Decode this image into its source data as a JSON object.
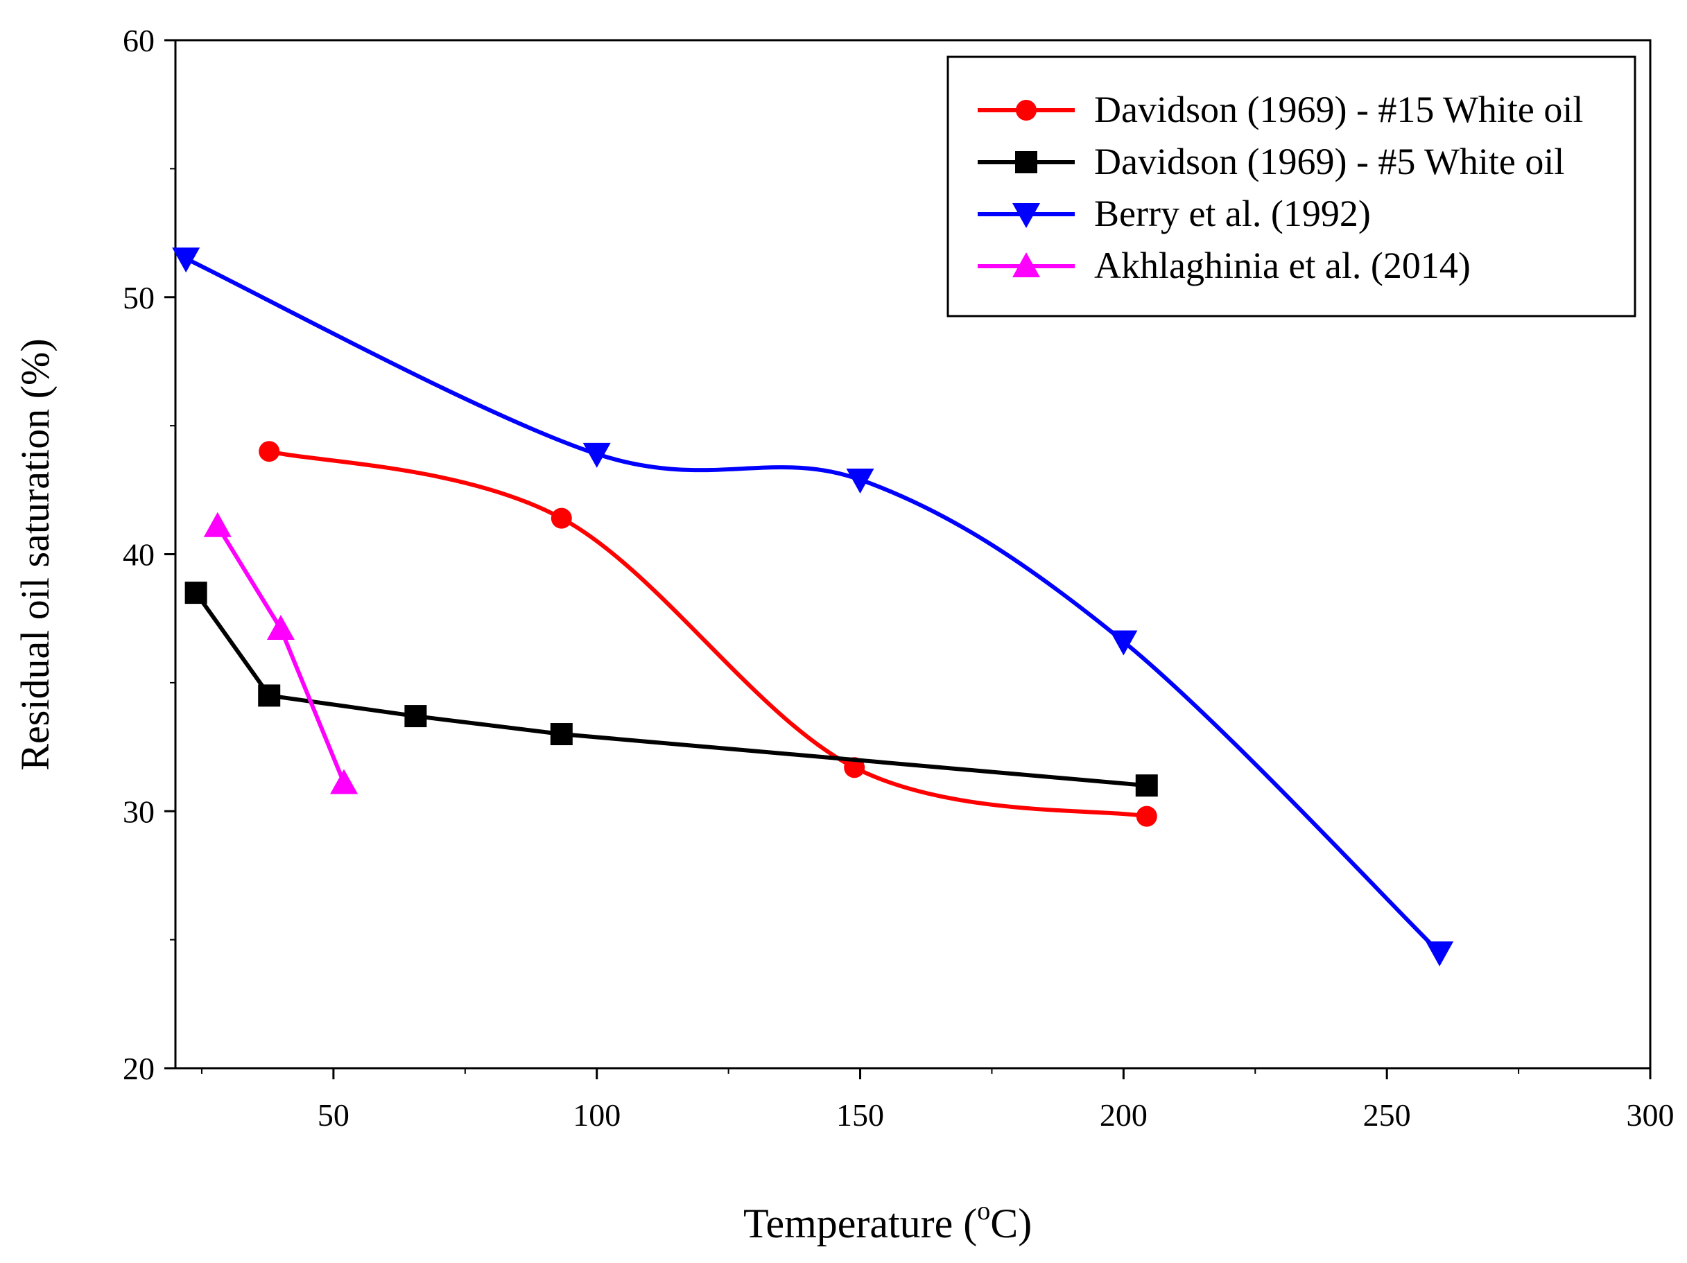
{
  "chart_data": {
    "type": "line",
    "title": "",
    "xlabel": "Temperature (",
    "xlabel_sup": "o",
    "xlabel_tail": "C)",
    "ylabel": "Residual oil saturation (%)",
    "xlim": [
      20,
      300
    ],
    "ylim": [
      20,
      60
    ],
    "xticks": [
      50,
      100,
      150,
      200,
      250,
      300
    ],
    "yticks": [
      20,
      30,
      40,
      50,
      60
    ],
    "grid": false,
    "legend_position": "top-right",
    "series": [
      {
        "name": "Davidson (1969) - #15 White oil",
        "color": "#ff0000",
        "marker": "circle",
        "x": [
          37.8,
          93.3,
          148.9,
          204.4
        ],
        "y": [
          44.0,
          41.4,
          31.7,
          29.8
        ]
      },
      {
        "name": "Davidson (1969) - #5 White oil",
        "color": "#000000",
        "marker": "square",
        "x": [
          23.9,
          37.8,
          65.6,
          93.3,
          204.4
        ],
        "y": [
          38.5,
          34.5,
          33.7,
          33.0,
          31.0
        ]
      },
      {
        "name": "Berry et al. (1992)",
        "color": "#0000ff",
        "marker": "triangle-down",
        "x": [
          22,
          100,
          150,
          200,
          260
        ],
        "y": [
          51.5,
          43.9,
          42.9,
          36.6,
          24.5
        ]
      },
      {
        "name": "Akhlaghinia et al. (2014)",
        "color": "#ff00ff",
        "marker": "triangle-up",
        "x": [
          28,
          40,
          52
        ],
        "y": [
          41.1,
          37.1,
          31.1
        ]
      }
    ]
  }
}
